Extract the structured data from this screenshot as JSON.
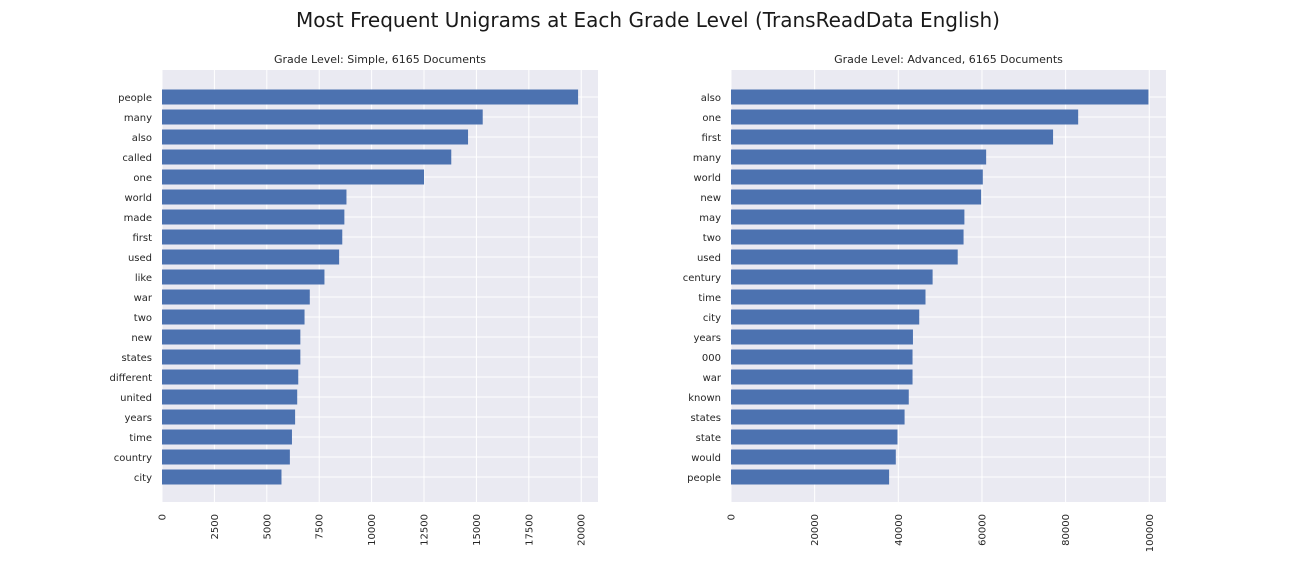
{
  "figure": {
    "title": "Most Frequent Unigrams at Each Grade Level (TransReadData English)"
  },
  "chart_data": [
    {
      "type": "bar",
      "orientation": "horizontal",
      "title": "Grade Level: Simple, 6165 Documents",
      "xlabel": "",
      "ylabel": "",
      "xlim": [
        0,
        20800
      ],
      "x_ticks": [
        0,
        2500,
        5000,
        7500,
        10000,
        12500,
        15000,
        17500,
        20000
      ],
      "grid": true,
      "categories": [
        "people",
        "many",
        "also",
        "called",
        "one",
        "world",
        "made",
        "first",
        "used",
        "like",
        "war",
        "two",
        "new",
        "states",
        "different",
        "united",
        "years",
        "time",
        "country",
        "city"
      ],
      "values": [
        19850,
        15300,
        14600,
        13800,
        12500,
        8800,
        8700,
        8600,
        8450,
        7750,
        7050,
        6800,
        6600,
        6600,
        6500,
        6450,
        6350,
        6200,
        6100,
        5700
      ],
      "color": "#4c72b0"
    },
    {
      "type": "bar",
      "orientation": "horizontal",
      "title": "Grade Level: Advanced, 6165 Documents",
      "xlabel": "",
      "ylabel": "",
      "xlim": [
        0,
        104000
      ],
      "x_ticks": [
        0,
        20000,
        40000,
        60000,
        80000,
        100000
      ],
      "grid": true,
      "categories": [
        "also",
        "one",
        "first",
        "many",
        "world",
        "new",
        "may",
        "two",
        "used",
        "century",
        "time",
        "city",
        "years",
        "000",
        "war",
        "known",
        "states",
        "state",
        "would",
        "people"
      ],
      "values": [
        99800,
        83000,
        77000,
        61000,
        60200,
        59800,
        55800,
        55600,
        54200,
        48200,
        46500,
        45000,
        43500,
        43400,
        43400,
        42500,
        41500,
        39800,
        39400,
        37800
      ],
      "color": "#4c72b0"
    }
  ]
}
